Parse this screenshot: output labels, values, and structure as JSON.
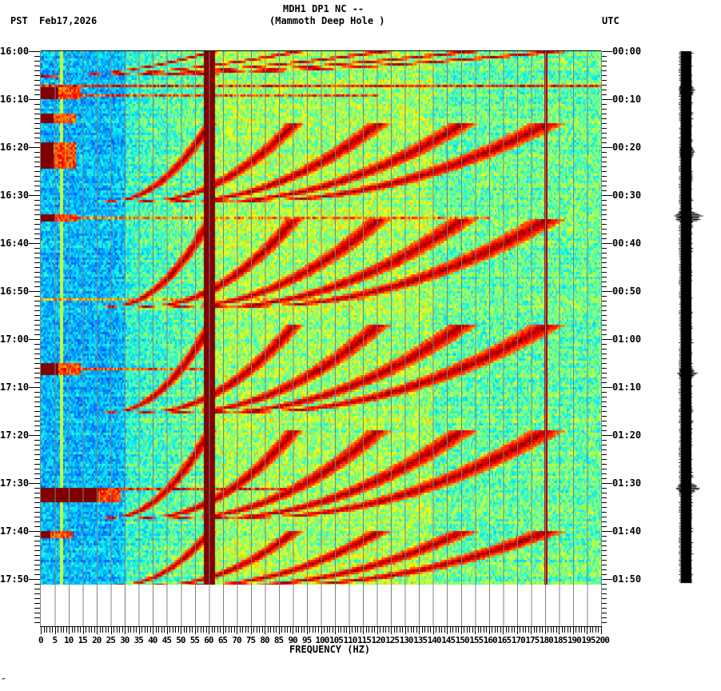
{
  "header": {
    "station_line": "MDH1 DP1 NC --",
    "location_line": "(Mammoth Deep Hole )",
    "left_timezone": "PST",
    "date": "Feb17,2026",
    "right_timezone": "UTC"
  },
  "footer": {
    "mark": "‴"
  },
  "chart_data": {
    "type": "heatmap",
    "title": "MDH1 DP1 NC -- (Mammoth Deep Hole )",
    "subtitle": "Feb17,2026",
    "xlabel": "FREQUENCY (HZ)",
    "ylabel_left": "PST",
    "ylabel_right": "UTC",
    "xlim": [
      0,
      200
    ],
    "x_ticks": [
      0,
      5,
      10,
      15,
      20,
      25,
      30,
      35,
      40,
      45,
      50,
      55,
      60,
      65,
      70,
      75,
      80,
      85,
      90,
      95,
      100,
      105,
      110,
      115,
      120,
      125,
      130,
      135,
      140,
      145,
      150,
      155,
      160,
      165,
      170,
      175,
      180,
      185,
      190,
      195,
      200
    ],
    "x_tick_labels": [
      "0",
      "5",
      "10",
      "15",
      "20",
      "25",
      "30",
      "35",
      "40",
      "45",
      "50",
      "55",
      "60",
      "65",
      "70",
      "75",
      "80",
      "85",
      "90",
      "95",
      "100",
      "105",
      "110",
      "115",
      "120",
      "125",
      "130",
      "135",
      "140",
      "145",
      "150",
      "155",
      "160",
      "165",
      "170",
      "175",
      "180",
      "185",
      "190",
      "195",
      "200"
    ],
    "x_minor_tick_step": 1,
    "y_ticks_left": [
      "16:00",
      "16:10",
      "16:20",
      "16:30",
      "16:40",
      "16:50",
      "17:00",
      "17:10",
      "17:20",
      "17:30",
      "17:40",
      "17:50"
    ],
    "y_ticks_right": [
      "00:00",
      "00:10",
      "00:20",
      "00:30",
      "00:40",
      "00:50",
      "01:00",
      "01:10",
      "01:20",
      "01:30",
      "01:40",
      "01:50"
    ],
    "y_minor_tick_step_min": 1,
    "time_range_minutes": [
      0,
      120
    ],
    "data_end_minute": 111,
    "grid": {
      "vertical_lines_every_hz": 5,
      "color": "#808080"
    },
    "colormap": [
      "#0050ff",
      "#00a0ff",
      "#00e0ff",
      "#40ffc0",
      "#a0ff60",
      "#ffff00",
      "#ff8000",
      "#ff0000",
      "#800000"
    ],
    "persistent_lines_hz": [
      {
        "freq": 60,
        "width_hz": 2,
        "level": 1.0,
        "note": "strong 60 Hz line"
      },
      {
        "freq": 180,
        "width_hz": 0.5,
        "level": 0.95
      },
      {
        "freq": 7,
        "width_hz": 0.5,
        "level": 0.55
      }
    ],
    "background_levels": [
      {
        "from_hz": 0,
        "to_hz": 30,
        "level": 0.18
      },
      {
        "from_hz": 30,
        "to_hz": 58,
        "level": 0.32
      },
      {
        "from_hz": 58,
        "to_hz": 140,
        "level": 0.5
      },
      {
        "from_hz": 140,
        "to_hz": 200,
        "level": 0.42
      }
    ],
    "chirp_events": [
      {
        "start_min": 5,
        "end_min": 0,
        "f_start": 0,
        "f_end": 60,
        "note": "gliding harmonics, cycle A"
      },
      {
        "start_min": 31,
        "end_min": 15,
        "f_start": 25,
        "f_end": 60
      },
      {
        "start_min": 53,
        "end_min": 35,
        "f_start": 25,
        "f_end": 60
      },
      {
        "start_min": 75,
        "end_min": 57,
        "f_start": 25,
        "f_end": 60
      },
      {
        "start_min": 97,
        "end_min": 79,
        "f_start": 25,
        "f_end": 60
      },
      {
        "start_min": 111,
        "end_min": 100,
        "f_start": 28,
        "f_end": 60
      }
    ],
    "harmonic_multipliers": [
      1,
      1.5,
      2,
      2.5,
      3
    ],
    "broadband_bursts_min": [
      {
        "minute": 7,
        "hz_to": 200,
        "level": 0.85
      },
      {
        "minute": 9,
        "hz_to": 120,
        "level": 0.8
      },
      {
        "minute": 34.5,
        "hz_to": 160,
        "level": 0.75
      },
      {
        "minute": 51.5,
        "hz_to": 120,
        "level": 0.7
      },
      {
        "minute": 66,
        "hz_to": 60,
        "level": 0.8
      },
      {
        "minute": 91,
        "hz_to": 90,
        "level": 0.85
      }
    ],
    "low_freq_events_min": [
      {
        "minute": 7.5,
        "duration": 2,
        "hz_to": 6
      },
      {
        "minute": 13,
        "duration": 1.5,
        "hz_to": 4
      },
      {
        "minute": 19,
        "duration": 5,
        "hz_to": 4
      },
      {
        "minute": 34,
        "duration": 1,
        "hz_to": 5
      },
      {
        "minute": 65,
        "duration": 2,
        "hz_to": 6
      },
      {
        "minute": 91,
        "duration": 2.5,
        "hz_to": 20
      },
      {
        "minute": 100,
        "duration": 1,
        "hz_to": 3
      }
    ]
  },
  "seismogram": {
    "label": "waveform trace",
    "spikes_min": [
      {
        "minute": 8,
        "amp": 5
      },
      {
        "minute": 21,
        "amp": 6
      },
      {
        "minute": 34.5,
        "amp": 20
      },
      {
        "minute": 67,
        "amp": 8
      },
      {
        "minute": 91,
        "amp": 12
      }
    ]
  }
}
